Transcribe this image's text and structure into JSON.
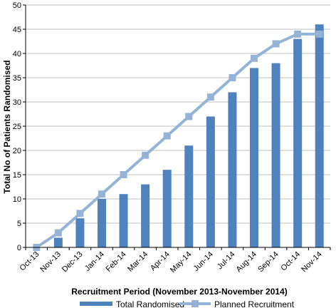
{
  "chart_data": {
    "type": "bar",
    "categories": [
      "Oct-13",
      "Nov-13",
      "Dec-13",
      "Jan-14",
      "Feb-14",
      "Mar-14",
      "Apr-14",
      "May-14",
      "Jun-14",
      "Jul-14",
      "Aug-14",
      "Sep-14",
      "Oct-14",
      "Nov-14"
    ],
    "series": [
      {
        "name": "Total Randomised",
        "type": "bar",
        "color": "#4f81bd",
        "values": [
          0,
          2,
          6,
          10,
          11,
          13,
          16,
          21,
          27,
          32,
          37,
          38,
          43,
          46
        ]
      },
      {
        "name": "Planned Recruitment",
        "type": "line",
        "marker": "square",
        "color": "#95b3d7",
        "values": [
          0,
          3,
          7,
          11,
          15,
          19,
          23,
          27,
          31,
          35,
          39,
          42,
          44,
          44
        ]
      }
    ],
    "xlabel": "Recruitment Period (November 2013-November 2014)",
    "ylabel": "Total No of Patients Randomised",
    "ylim": [
      0,
      50
    ],
    "yticks": [
      0,
      5,
      10,
      15,
      20,
      25,
      30,
      35,
      40,
      45,
      50
    ],
    "grid": "horizontal",
    "legend": "bottom"
  }
}
